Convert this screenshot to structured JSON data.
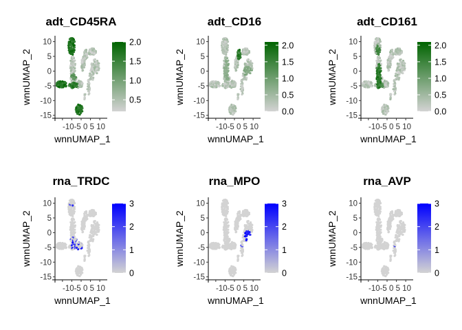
{
  "colors": {
    "low": "#d3d3d3",
    "adt_high": "#006400",
    "rna_high": "#0000ff"
  },
  "chart_data": [
    {
      "type": "scatter",
      "title": "adt_CD45RA",
      "xlabel": "wnnUMAP_1",
      "ylabel": "wnnUMAP_2",
      "x_ticks": [
        "-10",
        "-5",
        "0",
        "5",
        "10"
      ],
      "x_tick_text": "-10-5 0 5 10",
      "y_ticks": [
        "10",
        "5",
        "0",
        "-5",
        "-10",
        "-15"
      ],
      "xlim": [
        -14,
        14
      ],
      "ylim": [
        -16,
        12
      ],
      "color_scale": {
        "low": "#d3d3d3",
        "high": "#006400",
        "min": 0.2,
        "max": 2.0,
        "ticks": [
          "2.0",
          "1.5",
          "1.0",
          "0.5"
        ],
        "tick_values": [
          2.0,
          1.5,
          1.0,
          0.5
        ]
      },
      "highlights": [
        {
          "x": -5.0,
          "y": 8.5,
          "rx": 1.8,
          "ry": 3.0,
          "v": 2.0
        },
        {
          "x": -10.5,
          "y": -4.5,
          "rx": 3.0,
          "ry": 1.2,
          "v": 2.0
        },
        {
          "x": -4.0,
          "y": -4.8,
          "rx": 2.5,
          "ry": 1.0,
          "v": 1.9
        },
        {
          "x": -1.0,
          "y": -13.0,
          "rx": 2.0,
          "ry": 1.8,
          "v": 2.0
        },
        {
          "x": -4.0,
          "y": -2.0,
          "rx": 1.5,
          "ry": 1.0,
          "v": 1.4
        }
      ]
    },
    {
      "type": "scatter",
      "title": "adt_CD16",
      "xlabel": "wnnUMAP_1",
      "ylabel": "wnnUMAP_2",
      "x_ticks": [
        "-10",
        "-5",
        "0",
        "5",
        "10"
      ],
      "x_tick_text": "-10-5 0 5 10",
      "y_ticks": [
        "10",
        "5",
        "0",
        "-5",
        "-10",
        "-15"
      ],
      "xlim": [
        -14,
        14
      ],
      "ylim": [
        -16,
        12
      ],
      "color_scale": {
        "low": "#d3d3d3",
        "high": "#006400",
        "min": 0.0,
        "max": 2.1,
        "ticks": [
          "2.0",
          "1.5",
          "1.0",
          "0.5",
          "0.0"
        ],
        "tick_values": [
          2.0,
          1.5,
          1.0,
          0.5,
          0.0
        ]
      },
      "highlights": [
        {
          "x": 2.6,
          "y": 5.5,
          "rx": 1.2,
          "ry": 1.8,
          "v": 1.9
        },
        {
          "x": -4.0,
          "y": 0.5,
          "rx": 1.6,
          "ry": 4.0,
          "v": 0.8
        },
        {
          "x": 7.0,
          "y": 0.0,
          "rx": 2.5,
          "ry": 1.5,
          "v": 0.9
        }
      ]
    },
    {
      "type": "scatter",
      "title": "adt_CD161",
      "xlabel": "wnnUMAP_1",
      "ylabel": "wnnUMAP_2",
      "x_ticks": [
        "-10",
        "-5",
        "0",
        "5",
        "10"
      ],
      "x_tick_text": "-10-5 0 5 10",
      "y_ticks": [
        "10",
        "5",
        "0",
        "-5",
        "-10",
        "-15"
      ],
      "xlim": [
        -14,
        14
      ],
      "ylim": [
        -16,
        12
      ],
      "color_scale": {
        "low": "#d3d3d3",
        "high": "#006400",
        "min": 0.0,
        "max": 2.1,
        "ticks": [
          "2.0",
          "1.5",
          "1.0",
          "0.5",
          "0.0"
        ],
        "tick_values": [
          2.0,
          1.5,
          1.0,
          0.5,
          0.0
        ]
      },
      "highlights": [
        {
          "x": -4.5,
          "y": -1.5,
          "rx": 1.5,
          "ry": 4.5,
          "v": 1.9
        },
        {
          "x": -4.8,
          "y": 7.0,
          "rx": 1.2,
          "ry": 1.8,
          "v": 1.6
        },
        {
          "x": -3.0,
          "y": -5.0,
          "rx": 1.2,
          "ry": 1.0,
          "v": 1.5
        }
      ]
    },
    {
      "type": "scatter",
      "title": "rna_TRDC",
      "xlabel": "wnnUMAP_1",
      "ylabel": "wnnUMAP_2",
      "x_ticks": [
        "-10",
        "-5",
        "0",
        "5",
        "10"
      ],
      "x_tick_text": "-10-5 0 5 10",
      "y_ticks": [
        "10",
        "5",
        "0",
        "-5",
        "-10",
        "-15"
      ],
      "xlim": [
        -14,
        14
      ],
      "ylim": [
        -16,
        12
      ],
      "color_scale": {
        "low": "#d3d3d3",
        "high": "#0000ff",
        "min": 0,
        "max": 3,
        "ticks": [
          "3",
          "2",
          "1",
          "0"
        ],
        "tick_values": [
          3,
          2,
          1,
          0
        ]
      },
      "highlights": [
        {
          "x": -3.5,
          "y": -3.5,
          "rx": 2.5,
          "ry": 2.0,
          "v": 3.0,
          "sparse": true
        },
        {
          "x": -1.0,
          "y": -5.0,
          "rx": 2.0,
          "ry": 1.5,
          "v": 3.0,
          "sparse": true
        },
        {
          "x": -5.5,
          "y": 9.5,
          "rx": 1.0,
          "ry": 1.2,
          "v": 3.0,
          "sparse": true
        },
        {
          "x": 2.5,
          "y": -5.0,
          "rx": 1.0,
          "ry": 1.0,
          "v": 2.5,
          "sparse": true
        }
      ]
    },
    {
      "type": "scatter",
      "title": "rna_MPO",
      "xlabel": "wnnUMAP_1",
      "ylabel": "wnnUMAP_2",
      "x_ticks": [
        "-10",
        "-5",
        "0",
        "5",
        "10"
      ],
      "x_tick_text": "-10-5 0 5 10",
      "y_ticks": [
        "10",
        "5",
        "0",
        "-5",
        "-10",
        "-15"
      ],
      "xlim": [
        -14,
        14
      ],
      "ylim": [
        -16,
        12
      ],
      "color_scale": {
        "low": "#d3d3d3",
        "high": "#0000ff",
        "min": 0,
        "max": 3,
        "ticks": [
          "3",
          "2",
          "1",
          "0"
        ],
        "tick_values": [
          3,
          2,
          1,
          0
        ]
      },
      "highlights": [
        {
          "x": 7.0,
          "y": -1.0,
          "rx": 1.6,
          "ry": 2.0,
          "v": 3.0
        },
        {
          "x": 4.5,
          "y": -4.0,
          "rx": 1.0,
          "ry": 1.0,
          "v": 2.5,
          "sparse": true
        },
        {
          "x": -2.0,
          "y": 9.0,
          "rx": 0.6,
          "ry": 0.8,
          "v": 2.5,
          "sparse": true
        }
      ]
    },
    {
      "type": "scatter",
      "title": "rna_AVP",
      "xlabel": "wnnUMAP_1",
      "ylabel": "wnnUMAP_2",
      "x_ticks": [
        "-10",
        "-5",
        "0",
        "5",
        "10"
      ],
      "x_tick_text": "-10-5 0 5 10",
      "y_ticks": [
        "10",
        "5",
        "0",
        "-5",
        "-10",
        "-15"
      ],
      "xlim": [
        -14,
        14
      ],
      "ylim": [
        -16,
        12
      ],
      "color_scale": {
        "low": "#d3d3d3",
        "high": "#0000ff",
        "min": 0,
        "max": 3,
        "ticks": [
          "3",
          "2",
          "1",
          "0"
        ],
        "tick_values": [
          3,
          2,
          1,
          0
        ]
      },
      "highlights": [
        {
          "x": 4.5,
          "y": -4.5,
          "rx": 0.6,
          "ry": 0.6,
          "v": 3.0,
          "sparse": true
        }
      ]
    }
  ]
}
